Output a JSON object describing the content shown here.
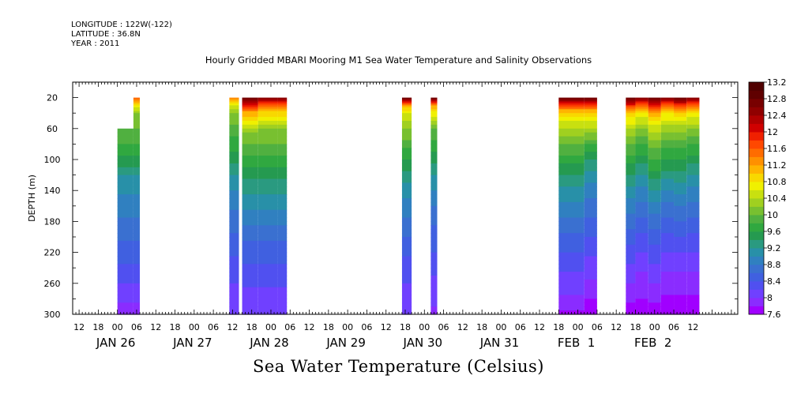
{
  "header": {
    "longitude": "LONGITUDE : 122W(-122)",
    "latitude": "LATITUDE : 36.8N",
    "year": "YEAR : 2011"
  },
  "chart_data": {
    "type": "heatmap",
    "title": "Hourly Gridded MBARI Mooring M1 Sea Water Temperature and Salinity Observations",
    "subtitle": "Sea Water Temperature (Celsius)",
    "xlabel": "",
    "ylabel": "DEPTH (m)",
    "x_range_hours": [
      -14,
      194
    ],
    "x_unit": "hours since JAN 26 00:00, 2011",
    "y_range": [
      300,
      0
    ],
    "y_ticks": [
      20,
      60,
      100,
      140,
      180,
      220,
      260,
      300
    ],
    "hour_tick_labels": [
      "12",
      "18",
      "00",
      "06",
      "12",
      "18",
      "00",
      "06",
      "12",
      "18",
      "00",
      "06",
      "12",
      "18",
      "00",
      "06",
      "12",
      "18",
      "00",
      "06",
      "12",
      "18",
      "00",
      "06",
      "12",
      "18",
      "00",
      "06",
      "12",
      "18",
      "00",
      "06",
      "12"
    ],
    "date_labels": [
      "JAN 26",
      "JAN 27",
      "JAN 28",
      "JAN 29",
      "JAN 30",
      "JAN 31",
      "FEB  1",
      "FEB  2"
    ],
    "colorbar": {
      "min": 7.6,
      "max": 13.2,
      "step": 0.2,
      "labels": [
        "13.2",
        "12.8",
        "12.4",
        "12",
        "11.6",
        "11.2",
        "10.8",
        "10.4",
        "10",
        "9.6",
        "9.2",
        "8.8",
        "8.4",
        "8",
        "7.6"
      ]
    },
    "profile_depths": [
      0,
      5,
      10,
      15,
      20,
      30,
      40,
      60,
      80,
      100,
      120,
      140,
      160,
      180,
      200,
      220,
      240,
      260,
      280,
      300
    ],
    "segments": [
      {
        "start": 0,
        "end": 5,
        "top_depth": 60,
        "profile": [
          10.0,
          10.0,
          10.0,
          10.0,
          10.0,
          10.0,
          10.0,
          10.0,
          9.8,
          9.55,
          9.2,
          9.05,
          8.9,
          8.75,
          8.65,
          8.5,
          8.35,
          8.2,
          8.05,
          7.9
        ]
      },
      {
        "start": 5,
        "end": 7,
        "top_depth": 20,
        "profile": [
          11.5,
          11.5,
          11.5,
          11.5,
          11.5,
          10.8,
          10.2,
          10.0,
          9.8,
          9.55,
          9.2,
          9.05,
          8.9,
          8.75,
          8.65,
          8.5,
          8.35,
          8.2,
          8.05,
          7.9
        ]
      },
      {
        "start": 35,
        "end": 38,
        "top_depth": 20,
        "profile": [
          11.3,
          11.3,
          11.3,
          11.3,
          11.3,
          10.6,
          10.2,
          9.9,
          9.7,
          9.5,
          9.2,
          9.0,
          8.85,
          8.7,
          8.55,
          8.45,
          8.3,
          8.2,
          8.1,
          8.0
        ]
      },
      {
        "start": 39,
        "end": 44,
        "top_depth": 20,
        "profile": [
          12.9,
          12.9,
          12.9,
          12.9,
          12.9,
          11.9,
          11.1,
          10.3,
          10.0,
          9.7,
          9.45,
          9.25,
          9.05,
          8.85,
          8.65,
          8.5,
          8.35,
          8.25,
          8.1,
          8.0
        ]
      },
      {
        "start": 44,
        "end": 50,
        "top_depth": 20,
        "profile": [
          12.6,
          12.6,
          12.6,
          12.6,
          12.6,
          11.6,
          10.9,
          10.2,
          10.0,
          9.7,
          9.45,
          9.25,
          9.05,
          8.85,
          8.65,
          8.5,
          8.35,
          8.25,
          8.1,
          8.0
        ]
      },
      {
        "start": 50,
        "end": 53,
        "top_depth": 20,
        "profile": [
          12.6,
          12.6,
          12.6,
          12.6,
          12.6,
          11.6,
          10.9,
          10.2,
          10.0,
          9.7,
          9.45,
          9.25,
          9.05,
          8.85,
          8.65,
          8.5,
          8.35,
          8.25,
          8.1,
          8.0
        ]
      },
      {
        "start": 89,
        "end": 92,
        "top_depth": 20,
        "profile": [
          12.9,
          12.9,
          12.9,
          12.9,
          12.9,
          11.2,
          10.6,
          10.2,
          9.9,
          9.6,
          9.3,
          9.1,
          8.9,
          8.75,
          8.6,
          8.45,
          8.3,
          8.2,
          8.1,
          8.0
        ]
      },
      {
        "start": 98,
        "end": 100,
        "top_depth": 20,
        "profile": [
          12.9,
          12.9,
          12.9,
          12.9,
          12.9,
          11.2,
          10.7,
          10.0,
          9.75,
          9.5,
          9.2,
          9.0,
          8.8,
          8.65,
          8.5,
          8.4,
          8.25,
          8.15,
          8.05,
          7.95
        ]
      },
      {
        "start": 138,
        "end": 146,
        "top_depth": 20,
        "profile": [
          12.9,
          12.9,
          12.9,
          12.9,
          12.9,
          11.7,
          10.9,
          10.4,
          10.0,
          9.7,
          9.4,
          9.15,
          8.95,
          8.75,
          8.55,
          8.4,
          8.25,
          8.1,
          7.95,
          7.75
        ]
      },
      {
        "start": 146,
        "end": 150,
        "top_depth": 20,
        "profile": [
          12.9,
          12.9,
          12.9,
          12.9,
          12.9,
          11.7,
          10.9,
          10.4,
          9.8,
          9.4,
          9.1,
          8.9,
          8.7,
          8.55,
          8.4,
          8.25,
          8.1,
          7.95,
          7.8,
          7.65
        ]
      },
      {
        "start": 159,
        "end": 162,
        "top_depth": 20,
        "profile": [
          12.9,
          12.9,
          12.9,
          12.9,
          12.9,
          11.9,
          11.0,
          10.4,
          10.0,
          9.7,
          9.4,
          9.15,
          8.9,
          8.7,
          8.5,
          8.3,
          8.15,
          8.0,
          7.85,
          7.7
        ]
      },
      {
        "start": 162,
        "end": 166,
        "top_depth": 20,
        "profile": [
          12.6,
          12.6,
          12.6,
          12.6,
          12.6,
          11.6,
          10.8,
          10.2,
          9.8,
          9.5,
          9.2,
          8.95,
          8.75,
          8.55,
          8.35,
          8.2,
          8.05,
          7.9,
          7.8,
          7.7
        ]
      },
      {
        "start": 166,
        "end": 170,
        "top_depth": 20,
        "profile": [
          12.9,
          12.9,
          12.9,
          12.9,
          12.9,
          12.0,
          11.2,
          10.5,
          10.1,
          9.8,
          9.5,
          9.2,
          8.95,
          8.7,
          8.5,
          8.3,
          8.15,
          8.0,
          7.85,
          7.7
        ]
      },
      {
        "start": 170,
        "end": 174,
        "top_depth": 20,
        "profile": [
          12.6,
          12.6,
          12.6,
          12.6,
          12.6,
          11.6,
          10.8,
          10.3,
          9.9,
          9.6,
          9.3,
          9.0,
          8.75,
          8.55,
          8.35,
          8.2,
          8.05,
          7.9,
          7.75,
          7.65
        ]
      },
      {
        "start": 174,
        "end": 178,
        "top_depth": 20,
        "profile": [
          12.9,
          12.9,
          12.9,
          12.9,
          12.9,
          11.8,
          11.0,
          10.3,
          9.9,
          9.6,
          9.3,
          9.05,
          8.8,
          8.6,
          8.4,
          8.2,
          8.05,
          7.9,
          7.75,
          7.65
        ]
      },
      {
        "start": 178,
        "end": 182,
        "top_depth": 20,
        "profile": [
          12.6,
          12.6,
          12.6,
          12.6,
          12.6,
          11.6,
          10.8,
          10.2,
          9.8,
          9.5,
          9.2,
          8.95,
          8.75,
          8.55,
          8.35,
          8.2,
          8.05,
          7.9,
          7.75,
          7.65
        ]
      }
    ]
  },
  "palette": [
    "#a000ff",
    "#8a2cff",
    "#7040ff",
    "#5050f0",
    "#4060e0",
    "#3a70d0",
    "#3080c0",
    "#2890a8",
    "#2a9a80",
    "#259a50",
    "#30a840",
    "#50b040",
    "#78c030",
    "#a0d020",
    "#c8e010",
    "#f0f000",
    "#f8d800",
    "#ffb400",
    "#ff9000",
    "#ff6c00",
    "#ff4800",
    "#f02000",
    "#d00000",
    "#b00000",
    "#900000",
    "#780000",
    "#600000",
    "#500000"
  ]
}
